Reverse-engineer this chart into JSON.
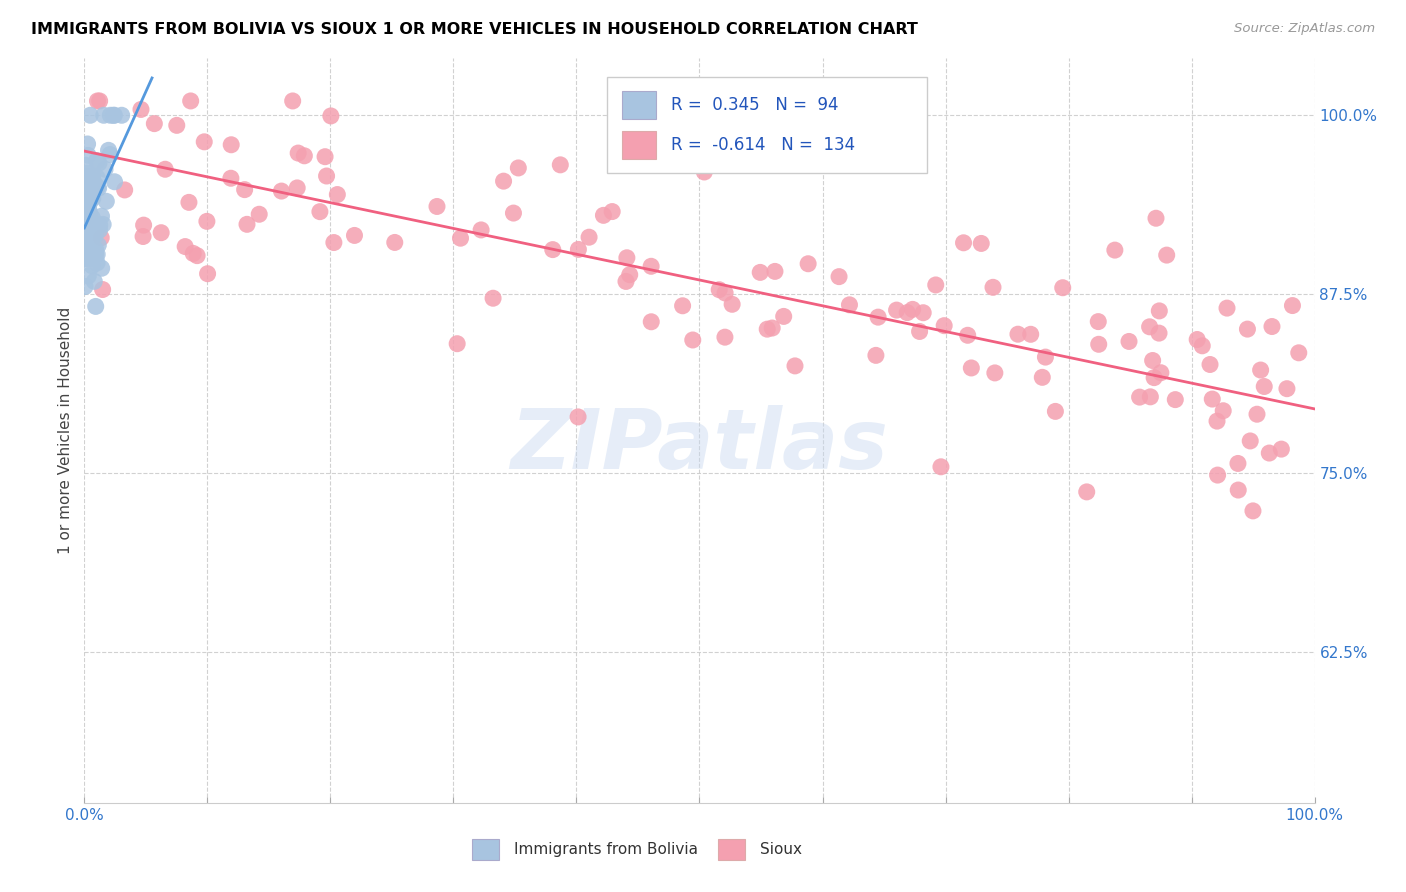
{
  "title": "IMMIGRANTS FROM BOLIVIA VS SIOUX 1 OR MORE VEHICLES IN HOUSEHOLD CORRELATION CHART",
  "source": "Source: ZipAtlas.com",
  "ylabel": "1 or more Vehicles in Household",
  "bolivia_color": "#a8c4e0",
  "sioux_color": "#f4a0b0",
  "bolivia_line_color": "#5599dd",
  "sioux_line_color": "#f06080",
  "R_bolivia": 0.345,
  "N_bolivia": 94,
  "R_sioux": -0.614,
  "N_sioux": 134,
  "legend_label_bolivia": "Immigrants from Bolivia",
  "legend_label_sioux": "Sioux",
  "watermark": "ZIPatlas",
  "y_tick_values": [
    0.625,
    0.75,
    0.875,
    1.0
  ],
  "y_tick_labels": [
    "62.5%",
    "75.0%",
    "87.5%",
    "100.0%"
  ],
  "xlim": [
    0.0,
    1.0
  ],
  "ylim": [
    0.52,
    1.04
  ]
}
